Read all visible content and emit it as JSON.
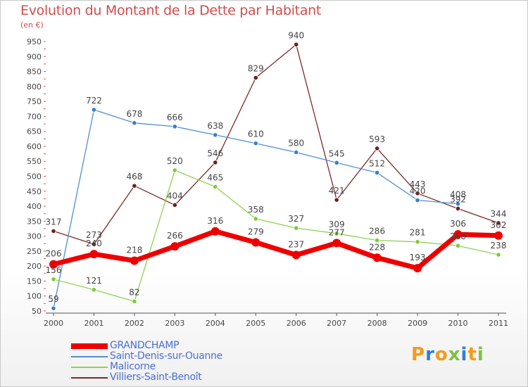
{
  "header": {
    "title": "Evolution du Montant de la Dette par Habitant",
    "unit": "(en €)"
  },
  "logo": {
    "text": "Proxiti"
  },
  "chart_data": {
    "type": "line",
    "title": "Evolution du Montant de la Dette par Habitant",
    "ylabel": "(en €)",
    "xlabel": "",
    "x": [
      "2000",
      "2001",
      "2002",
      "2003",
      "2004",
      "2005",
      "2006",
      "2007",
      "2008",
      "2009",
      "2010",
      "2011"
    ],
    "ylim": [
      50,
      950
    ],
    "yticks": [
      50,
      100,
      150,
      200,
      250,
      300,
      350,
      400,
      450,
      500,
      550,
      600,
      650,
      700,
      750,
      800,
      850,
      900,
      950
    ],
    "grid": false,
    "legend_position": "bottom-left",
    "series": [
      {
        "name": "GRANDCHAMP",
        "color": "#ee0000",
        "emphasis": true,
        "values": [
          206,
          240,
          218,
          266,
          316,
          279,
          237,
          277,
          228,
          193,
          306,
          302
        ],
        "labels": [
          "206",
          "240",
          "218",
          "266",
          "316",
          "279",
          "237",
          "277",
          "228",
          "193",
          "306",
          "302"
        ]
      },
      {
        "name": "Saint-Denis-sur-Ouanne",
        "color": "#4f8fd0",
        "marker": "#3a7fcc",
        "values": [
          59,
          722,
          678,
          666,
          638,
          610,
          580,
          545,
          512,
          420,
          408,
          null
        ],
        "labels": [
          "59",
          "722",
          "678",
          "666",
          "638",
          "610",
          "580",
          "545",
          "512",
          "420",
          "408",
          ""
        ]
      },
      {
        "name": "Malicorne",
        "color": "#8fd24f",
        "marker": "#7ccc3a",
        "values": [
          156,
          121,
          82,
          520,
          465,
          358,
          327,
          309,
          286,
          281,
          268,
          238
        ],
        "labels": [
          "156",
          "121",
          "82",
          "520",
          "465",
          "358",
          "327",
          "309",
          "286",
          "281",
          "268",
          "238"
        ]
      },
      {
        "name": "Villiers-Saint-Benoît",
        "color": "#7a2a2a",
        "marker": "#6e1f1f",
        "values": [
          317,
          273,
          468,
          404,
          546,
          829,
          940,
          421,
          593,
          443,
          392,
          344
        ],
        "labels": [
          "317",
          "273",
          "468",
          "404",
          "546",
          "829",
          "940",
          "421",
          "593",
          "443",
          "392",
          "344"
        ]
      }
    ]
  }
}
